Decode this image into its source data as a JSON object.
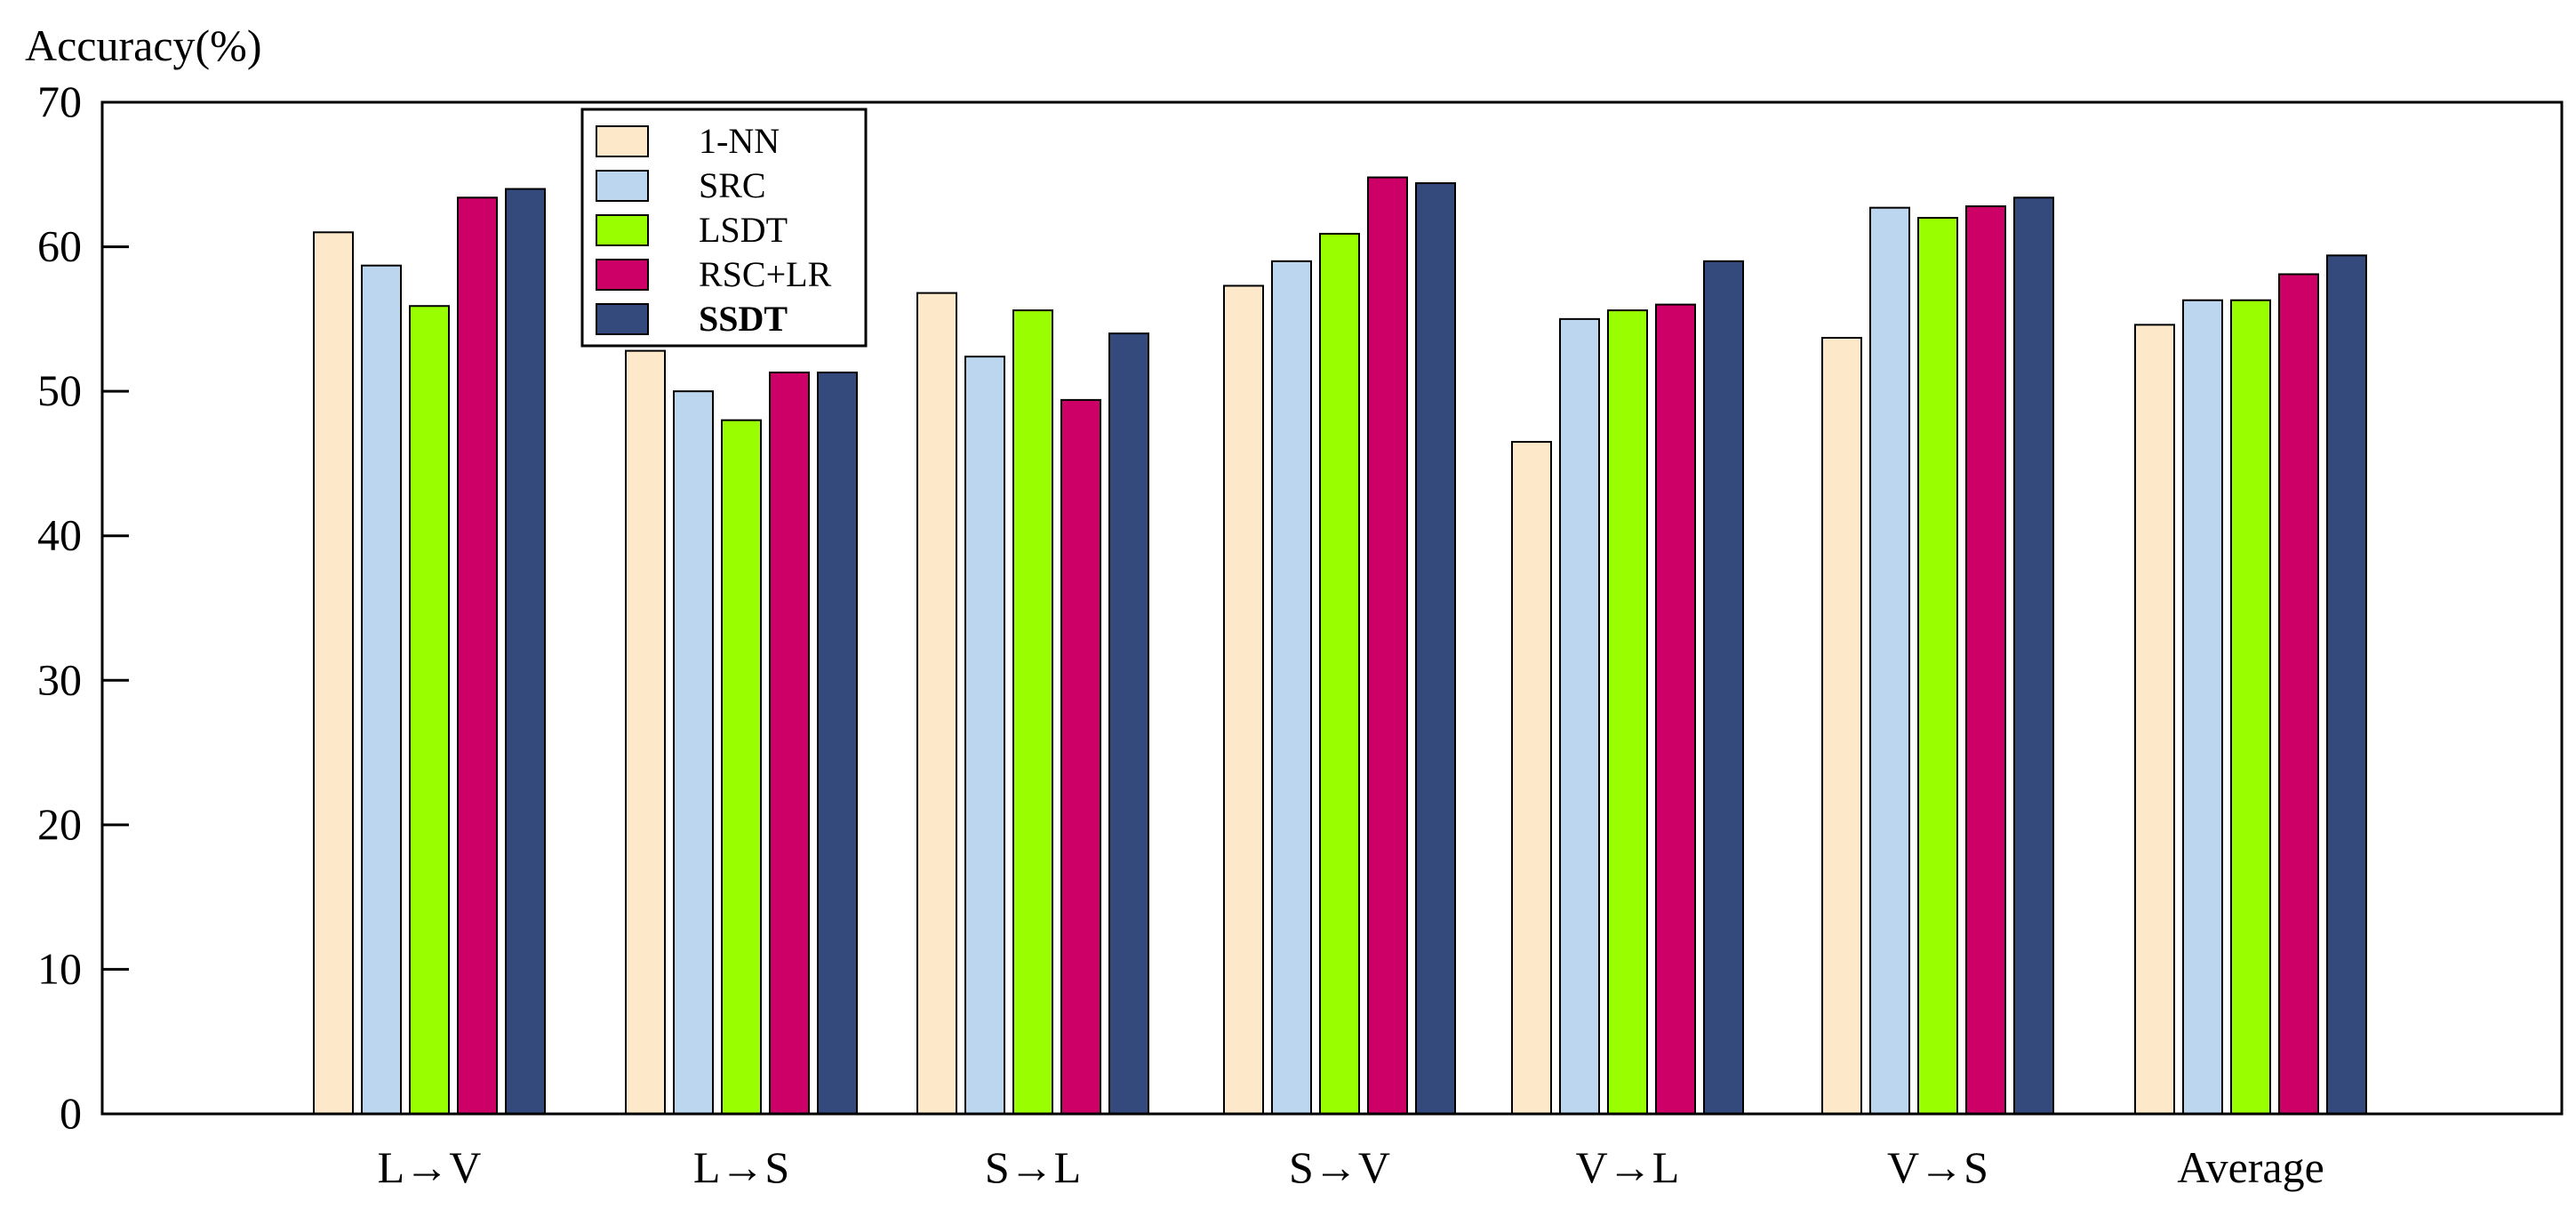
{
  "chart_data": {
    "type": "bar",
    "ylabel": "Accuracy(%)",
    "xlabel": "",
    "title": "",
    "ylim": [
      0,
      70
    ],
    "yticks": [
      0,
      10,
      20,
      30,
      40,
      50,
      60,
      70
    ],
    "grid": false,
    "legend_position": "top-left",
    "categories": [
      "L→V",
      "L→S",
      "S→L",
      "S→V",
      "V→L",
      "V→S",
      "Average"
    ],
    "series": [
      {
        "name": "1-NN",
        "color": "#fde9c9",
        "bold": false,
        "values": [
          61.0,
          52.8,
          56.8,
          57.3,
          46.5,
          53.7,
          54.6
        ]
      },
      {
        "name": "SRC",
        "color": "#bdd6ef",
        "bold": false,
        "values": [
          58.7,
          50.0,
          52.4,
          59.0,
          55.0,
          62.7,
          56.3
        ]
      },
      {
        "name": "LSDT",
        "color": "#99ff00",
        "bold": false,
        "values": [
          55.9,
          48.0,
          55.6,
          60.9,
          55.6,
          62.0,
          56.3
        ]
      },
      {
        "name": "RSC+LR",
        "color": "#cc0066",
        "bold": false,
        "values": [
          63.4,
          51.3,
          49.4,
          64.8,
          56.0,
          62.8,
          58.1
        ]
      },
      {
        "name": "SSDT",
        "color": "#34497c",
        "bold": true,
        "values": [
          64.0,
          51.3,
          54.0,
          64.4,
          59.0,
          63.4,
          59.4
        ]
      }
    ]
  }
}
